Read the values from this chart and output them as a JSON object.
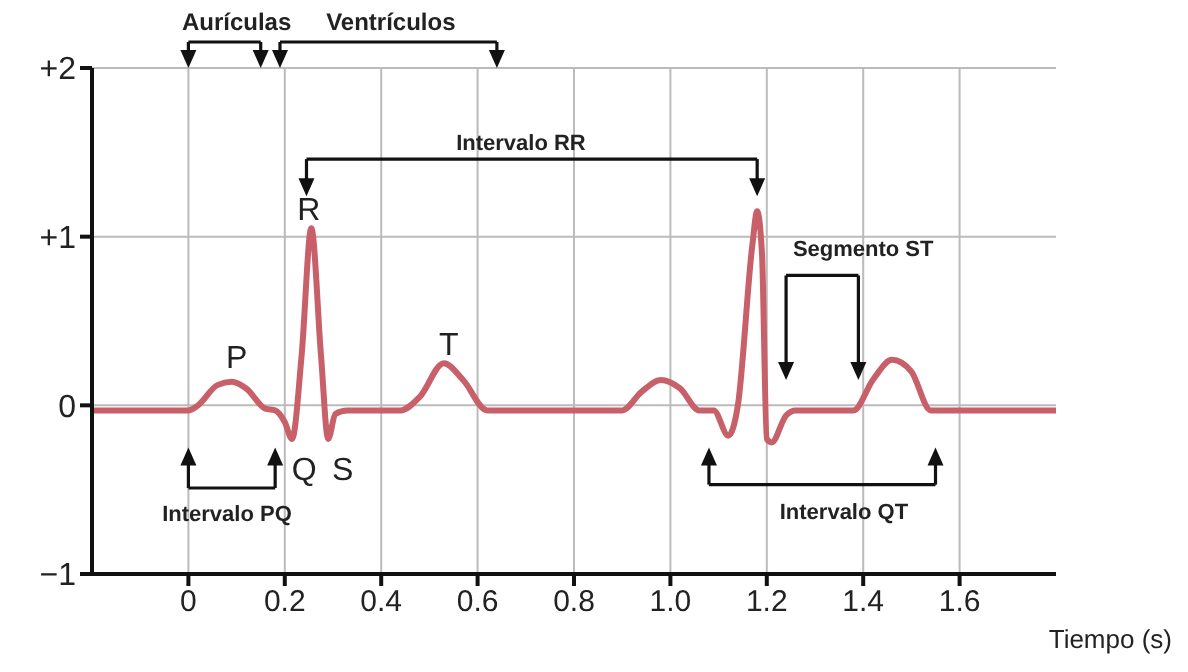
{
  "chart_data": {
    "type": "line",
    "xlabel": "Tiempo (s)",
    "x": [
      -0.2,
      0,
      0.02,
      0.06,
      0.09,
      0.12,
      0.16,
      0.18,
      0.2,
      0.215,
      0.235,
      0.255,
      0.275,
      0.29,
      0.305,
      0.33,
      0.44,
      0.48,
      0.53,
      0.57,
      0.62,
      0.9,
      0.94,
      0.98,
      1.02,
      1.06,
      1.09,
      1.12,
      1.14,
      1.17,
      1.18,
      1.19,
      1.2,
      1.21,
      1.24,
      1.26,
      1.38,
      1.42,
      1.46,
      1.5,
      1.54,
      1.8
    ],
    "series": [
      {
        "color": "#c8606a",
        "values": [
          -0.03,
          -0.03,
          0,
          0.12,
          0.14,
          0.1,
          -0.02,
          -0.03,
          -0.1,
          -0.2,
          0.3,
          1.05,
          0.3,
          -0.2,
          -0.05,
          -0.03,
          -0.03,
          0.05,
          0.25,
          0.15,
          -0.03,
          -0.03,
          0.08,
          0.15,
          0.1,
          -0.03,
          -0.03,
          -0.18,
          0,
          0.95,
          1.15,
          0.9,
          -0.2,
          -0.22,
          -0.06,
          -0.03,
          -0.03,
          0.15,
          0.27,
          0.2,
          -0.03,
          -0.03
        ]
      }
    ],
    "xlim": [
      -0.2,
      1.8
    ],
    "xticks": [
      0,
      0.2,
      0.4,
      0.6,
      0.8,
      {
        "value": 1,
        "label": "1.0"
      },
      1.2,
      1.4,
      1.6
    ],
    "ylim": [
      -1,
      2
    ],
    "yticks": [
      {
        "value": -1,
        "label": "−1"
      },
      0,
      {
        "value": 1,
        "label": "+1"
      },
      {
        "value": 2,
        "label": "+2"
      }
    ],
    "grid": true,
    "marker": "none",
    "annotations": [
      "Aurículas",
      "Ventrículos",
      "Intervalo RR",
      "R",
      "P",
      "T",
      "Q",
      "S",
      "Segmento ST",
      "Intervalo PQ",
      "Intervalo QT"
    ]
  }
}
